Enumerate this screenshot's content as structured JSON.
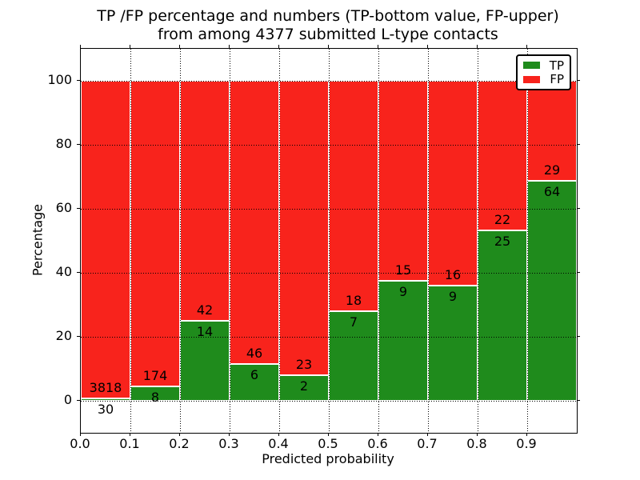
{
  "chart_data": {
    "type": "bar",
    "stacked": true,
    "title": "TP /FP percentage and numbers (TP-bottom value, FP-upper)",
    "subtitle": "from among 4377 submitted L-type contacts",
    "xlabel": "Predicted probability",
    "ylabel": "Percentage",
    "xlim": [
      0.0,
      1.0
    ],
    "ylim": [
      -10,
      110
    ],
    "grid": "dotted",
    "legend_position": "upper right",
    "x_tick_labels": [
      "0.0",
      "0.1",
      "0.2",
      "0.3",
      "0.4",
      "0.5",
      "0.6",
      "0.7",
      "0.8",
      "0.9"
    ],
    "y_tick_values": [
      0,
      20,
      40,
      60,
      80,
      100
    ],
    "y_tick_labels": [
      "0",
      "20",
      "40",
      "60",
      "80",
      "100"
    ],
    "bin_edges": [
      0.0,
      0.1,
      0.2,
      0.3,
      0.4,
      0.5,
      0.6,
      0.7,
      0.8,
      0.9,
      1.0
    ],
    "series": [
      {
        "name": "TP",
        "color": "#1f8b1c",
        "counts": [
          30,
          8,
          14,
          6,
          2,
          7,
          9,
          9,
          25,
          64
        ]
      },
      {
        "name": "FP",
        "color": "#f8231c",
        "counts": [
          3818,
          174,
          42,
          46,
          23,
          18,
          15,
          16,
          22,
          29
        ]
      }
    ],
    "tp_percentages": [
      0.78,
      4.4,
      25.0,
      11.54,
      8.0,
      28.0,
      37.5,
      36.0,
      53.19,
      68.82
    ],
    "total_submitted": 4377
  }
}
